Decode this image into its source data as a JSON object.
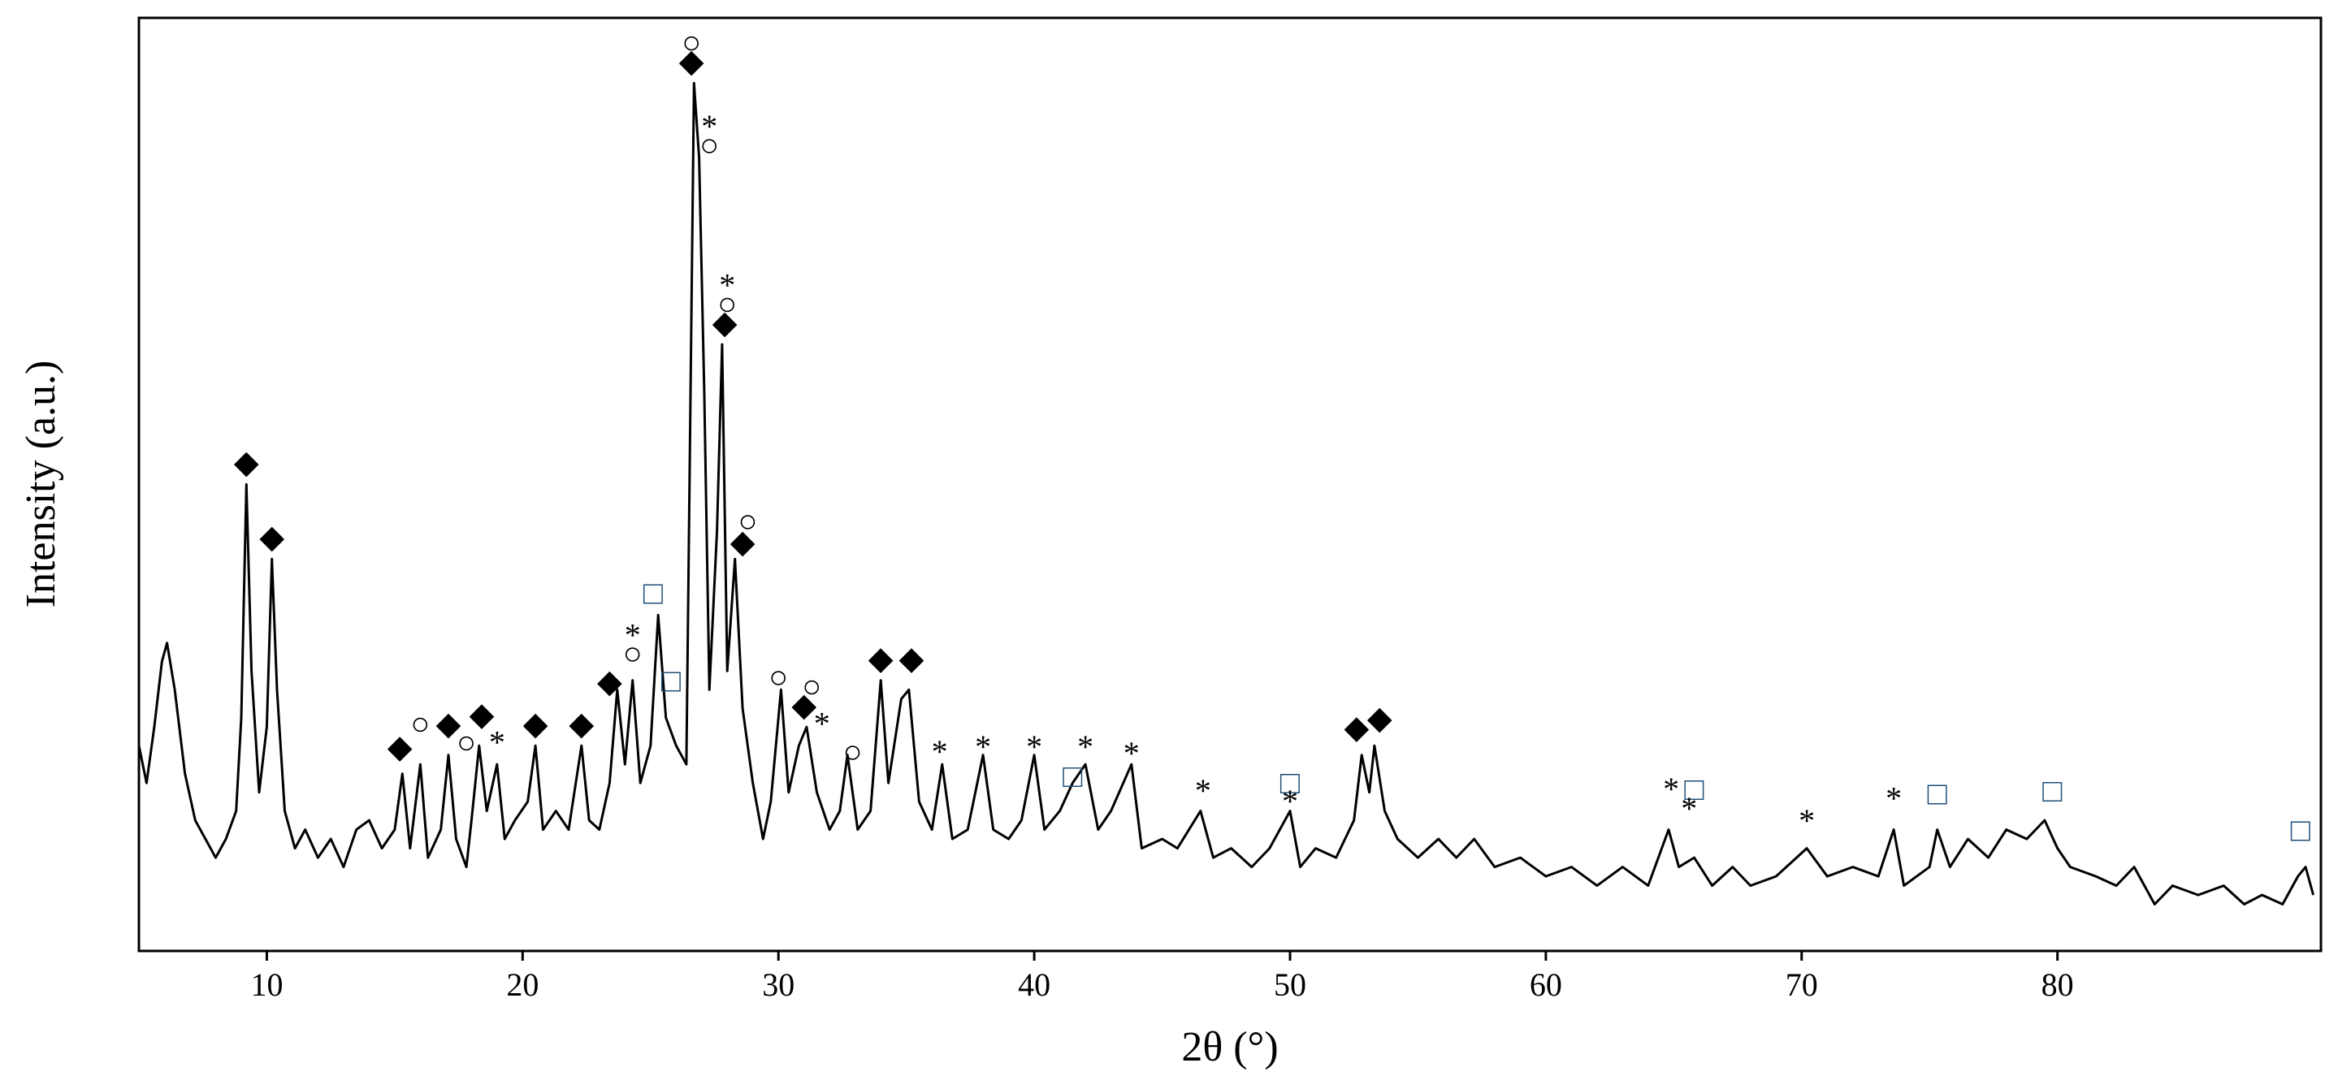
{
  "chart_data": {
    "type": "line",
    "xlabel": "2θ (°)",
    "ylabel": "Intensity (a.u.)",
    "xlim": [
      5,
      90.3
    ],
    "ylim": [
      0,
      100
    ],
    "xticks": [
      10,
      20,
      30,
      40,
      50,
      60,
      70,
      80
    ],
    "color": "#000000",
    "x": [
      5.0,
      5.3,
      5.6,
      5.9,
      6.1,
      6.4,
      6.8,
      7.2,
      7.6,
      8.0,
      8.4,
      8.8,
      9.0,
      9.2,
      9.4,
      9.7,
      10.0,
      10.2,
      10.4,
      10.7,
      11.1,
      11.5,
      12.0,
      12.5,
      13.0,
      13.5,
      14.0,
      14.5,
      15.0,
      15.3,
      15.6,
      16.0,
      16.3,
      16.8,
      17.1,
      17.4,
      17.8,
      18.0,
      18.3,
      18.6,
      19.0,
      19.3,
      19.7,
      20.2,
      20.5,
      20.8,
      21.3,
      21.8,
      22.3,
      22.6,
      23.0,
      23.4,
      23.7,
      24.0,
      24.3,
      24.6,
      25.0,
      25.3,
      25.6,
      26.0,
      26.4,
      26.7,
      26.9,
      27.1,
      27.3,
      27.6,
      27.8,
      28.0,
      28.3,
      28.6,
      29.0,
      29.4,
      29.7,
      30.1,
      30.4,
      30.8,
      31.1,
      31.5,
      32.0,
      32.4,
      32.7,
      33.1,
      33.6,
      34.0,
      34.3,
      34.8,
      35.1,
      35.5,
      36.0,
      36.4,
      36.8,
      37.4,
      38.0,
      38.4,
      39.0,
      39.5,
      40.0,
      40.4,
      41.0,
      41.5,
      42.0,
      42.5,
      43.0,
      43.8,
      44.2,
      45.0,
      45.6,
      46.5,
      47.0,
      47.7,
      48.5,
      49.2,
      50.0,
      50.4,
      51.0,
      51.8,
      52.5,
      52.8,
      53.1,
      53.3,
      53.7,
      54.2,
      55.0,
      55.8,
      56.5,
      57.2,
      58.0,
      59.0,
      60.0,
      61.0,
      62.0,
      63.0,
      64.0,
      64.8,
      65.2,
      65.8,
      66.5,
      67.3,
      68.0,
      69.0,
      70.2,
      71.0,
      72.0,
      73.0,
      73.6,
      74.0,
      75.0,
      75.3,
      75.8,
      76.5,
      77.3,
      78.0,
      78.8,
      79.5,
      80.0,
      80.5,
      81.5,
      82.3,
      83.0,
      83.8,
      84.5,
      85.5,
      86.5,
      87.3,
      88.0,
      88.8,
      89.4,
      89.7,
      90.0
    ],
    "values": [
      22,
      18,
      24,
      31,
      33,
      28,
      19,
      14,
      12,
      10,
      12,
      15,
      25,
      50,
      30,
      17,
      24,
      42,
      28,
      15,
      11,
      13,
      10,
      12,
      9,
      13,
      14,
      11,
      13,
      19,
      11,
      20,
      10,
      13,
      21,
      12,
      9,
      14,
      22,
      15,
      20,
      12,
      14,
      16,
      22,
      13,
      15,
      13,
      22,
      14,
      13,
      18,
      28,
      20,
      29,
      18,
      22,
      36,
      25,
      22,
      20,
      93,
      85,
      60,
      28,
      45,
      65,
      30,
      42,
      26,
      18,
      12,
      16,
      28,
      17,
      22,
      24,
      17,
      13,
      15,
      21,
      13,
      15,
      29,
      18,
      27,
      28,
      16,
      13,
      20,
      12,
      13,
      21,
      13,
      12,
      14,
      21,
      13,
      15,
      18,
      20,
      13,
      15,
      20,
      11,
      12,
      11,
      15,
      10,
      11,
      9,
      11,
      15,
      9,
      11,
      10,
      14,
      21,
      17,
      22,
      15,
      12,
      10,
      12,
      10,
      12,
      9,
      10,
      8,
      9,
      7,
      9,
      7,
      13,
      9,
      10,
      7,
      9,
      7,
      8,
      11,
      8,
      9,
      8,
      13,
      7,
      9,
      13,
      9,
      12,
      10,
      13,
      12,
      14,
      11,
      9,
      8,
      7,
      9,
      5,
      7,
      6,
      7,
      5,
      6,
      5,
      8,
      9,
      6
    ],
    "annotations": [
      {
        "text": "◆",
        "x": 9.2,
        "y": 52
      },
      {
        "text": "◆",
        "x": 10.2,
        "y": 44
      },
      {
        "text": "◆",
        "x": 15.2,
        "y": 21.5
      },
      {
        "text": "○",
        "x": 16.0,
        "y": 24
      },
      {
        "text": "◆",
        "x": 17.1,
        "y": 24
      },
      {
        "text": "○",
        "x": 17.8,
        "y": 22
      },
      {
        "text": "◆",
        "x": 18.4,
        "y": 25
      },
      {
        "text": "*",
        "x": 19.0,
        "y": 22
      },
      {
        "text": "◆",
        "x": 20.5,
        "y": 24
      },
      {
        "text": "◆",
        "x": 22.3,
        "y": 24
      },
      {
        "text": "◆",
        "x": 23.4,
        "y": 28.5
      },
      {
        "text": "○",
        "x": 24.3,
        "y": 31.5
      },
      {
        "text": "*",
        "x": 24.3,
        "y": 33.5
      },
      {
        "text": "□",
        "x": 25.1,
        "y": 38
      },
      {
        "text": "□",
        "x": 25.8,
        "y": 28.6
      },
      {
        "text": "○",
        "x": 26.6,
        "y": 97
      },
      {
        "text": "◆",
        "x": 26.6,
        "y": 95
      },
      {
        "text": "*",
        "x": 27.3,
        "y": 88
      },
      {
        "text": "○",
        "x": 27.3,
        "y": 86
      },
      {
        "text": "*",
        "x": 28.0,
        "y": 71
      },
      {
        "text": "○",
        "x": 28.0,
        "y": 69
      },
      {
        "text": "◆",
        "x": 27.9,
        "y": 67
      },
      {
        "text": "○",
        "x": 28.8,
        "y": 45.7
      },
      {
        "text": "◆",
        "x": 28.6,
        "y": 43.5
      },
      {
        "text": "○",
        "x": 30.0,
        "y": 29
      },
      {
        "text": "○",
        "x": 31.3,
        "y": 28
      },
      {
        "text": "◆",
        "x": 31.0,
        "y": 26
      },
      {
        "text": "*",
        "x": 31.7,
        "y": 24
      },
      {
        "text": "○",
        "x": 32.9,
        "y": 21
      },
      {
        "text": "◆",
        "x": 34.0,
        "y": 31
      },
      {
        "text": "◆",
        "x": 35.2,
        "y": 31
      },
      {
        "text": "*",
        "x": 36.3,
        "y": 21
      },
      {
        "text": "*",
        "x": 38.0,
        "y": 21.5
      },
      {
        "text": "*",
        "x": 40.0,
        "y": 21.5
      },
      {
        "text": "□",
        "x": 41.5,
        "y": 18.4
      },
      {
        "text": "*",
        "x": 42.0,
        "y": 21.5
      },
      {
        "text": "*",
        "x": 43.8,
        "y": 20.8
      },
      {
        "text": "*",
        "x": 46.6,
        "y": 16.8
      },
      {
        "text": "□",
        "x": 50.0,
        "y": 17.7
      },
      {
        "text": "*",
        "x": 50.0,
        "y": 15.7
      },
      {
        "text": "◆",
        "x": 52.6,
        "y": 23.6
      },
      {
        "text": "◆",
        "x": 53.5,
        "y": 24.6
      },
      {
        "text": "*",
        "x": 64.9,
        "y": 17
      },
      {
        "text": "□",
        "x": 65.8,
        "y": 17
      },
      {
        "text": "*",
        "x": 65.6,
        "y": 14.9
      },
      {
        "text": "*",
        "x": 70.2,
        "y": 13.6
      },
      {
        "text": "*",
        "x": 73.6,
        "y": 16
      },
      {
        "text": "□",
        "x": 75.3,
        "y": 16.5
      },
      {
        "text": "□",
        "x": 79.8,
        "y": 16.8
      },
      {
        "text": "□",
        "x": 89.5,
        "y": 12.6
      }
    ]
  }
}
